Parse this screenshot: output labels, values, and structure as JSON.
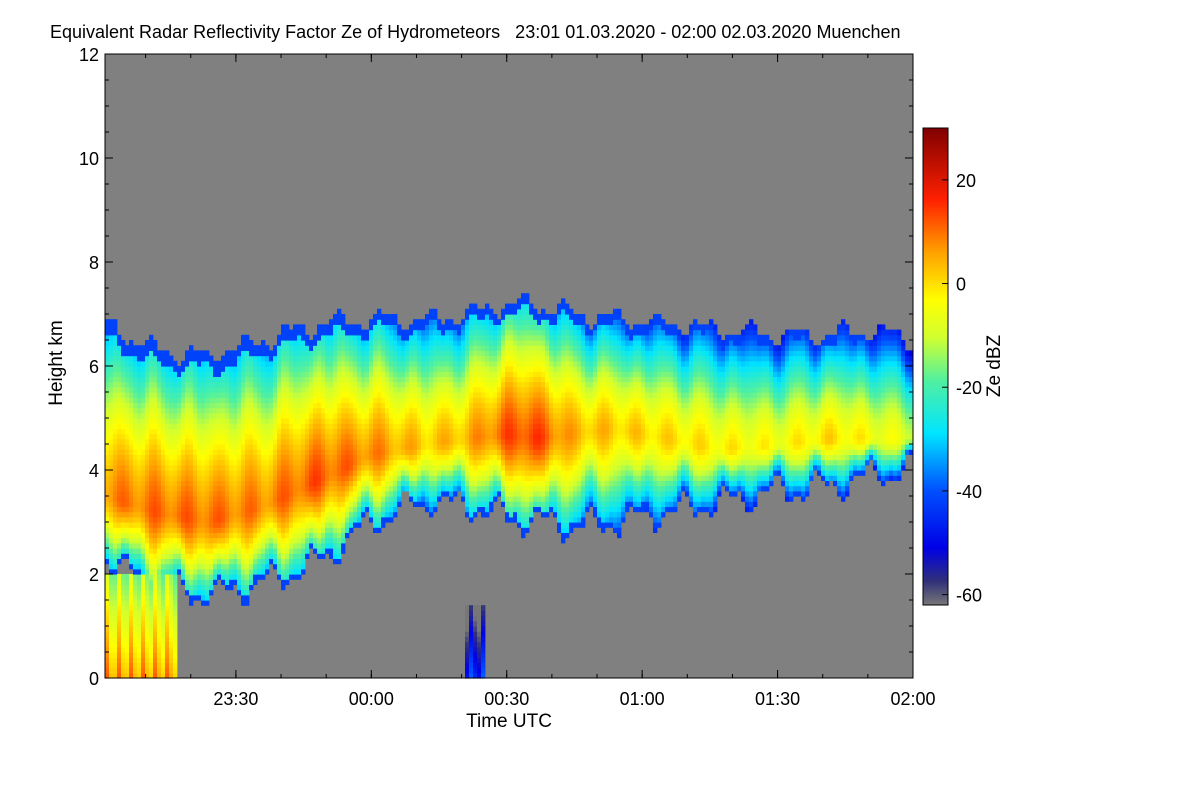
{
  "chart_data": {
    "type": "heatmap",
    "title": "Equivalent Radar Reflectivity Factor Ze of Hydrometeors   23:01 01.03.2020 - 02:00 02.03.2020 Muenchen",
    "xlabel": "Time UTC",
    "ylabel": "Height km",
    "colorbar_label": "Ze dBZ",
    "x_range_hours": [
      -0.9833,
      2.0
    ],
    "x_ticks": [
      {
        "value": -0.5,
        "label": "23:30"
      },
      {
        "value": 0.0,
        "label": "00:00"
      },
      {
        "value": 0.5,
        "label": "00:30"
      },
      {
        "value": 1.0,
        "label": "01:00"
      },
      {
        "value": 1.5,
        "label": "01:30"
      },
      {
        "value": 2.0,
        "label": "02:00"
      }
    ],
    "ylim": [
      0,
      12
    ],
    "y_ticks": [
      {
        "value": 0,
        "label": "0"
      },
      {
        "value": 2,
        "label": "2"
      },
      {
        "value": 4,
        "label": "4"
      },
      {
        "value": 6,
        "label": "6"
      },
      {
        "value": 8,
        "label": "8"
      },
      {
        "value": 10,
        "label": "10"
      },
      {
        "value": 12,
        "label": "12"
      }
    ],
    "color_range_dbz": [
      -62,
      30
    ],
    "colorbar_ticks": [
      {
        "value": 20,
        "label": "20"
      },
      {
        "value": 0,
        "label": "0"
      },
      {
        "value": -20,
        "label": "-20"
      },
      {
        "value": -40,
        "label": "-40"
      },
      {
        "value": -60,
        "label": "-60"
      }
    ],
    "background_color": "#808080",
    "cloud_layer": {
      "x": [
        -0.98,
        -0.8,
        -0.6,
        -0.4,
        -0.2,
        0.0,
        0.2,
        0.35,
        0.5,
        0.6,
        0.75,
        0.9,
        1.1,
        1.3,
        1.5,
        1.7,
        1.85,
        2.0
      ],
      "top_km": [
        6.8,
        6.3,
        6.2,
        6.5,
        6.8,
        6.9,
        6.9,
        7.0,
        7.2,
        7.2,
        7.0,
        6.9,
        6.8,
        6.7,
        6.6,
        6.6,
        6.7,
        6.5
      ],
      "base_km": [
        2.3,
        1.7,
        1.6,
        1.8,
        2.2,
        3.0,
        3.4,
        3.3,
        3.1,
        3.0,
        2.9,
        3.0,
        3.2,
        3.4,
        3.6,
        3.7,
        3.9,
        4.0
      ],
      "peak_height_km": [
        3.5,
        3.2,
        3.0,
        3.3,
        3.8,
        4.3,
        4.5,
        4.6,
        4.7,
        4.6,
        4.7,
        4.8,
        4.6,
        4.4,
        4.5,
        4.6,
        4.6,
        4.6
      ],
      "peak_dbz": [
        8,
        10,
        10,
        8,
        12,
        8,
        2,
        4,
        12,
        14,
        4,
        2,
        0,
        -2,
        -4,
        0,
        -4,
        -8
      ]
    },
    "precipitation_shafts": [
      {
        "x_start": -0.98,
        "x_end": -0.72,
        "top_km": 2.0,
        "dbz": 6
      },
      {
        "x_start": 0.35,
        "x_end": 0.42,
        "top_km": 1.4,
        "dbz": -44
      }
    ]
  }
}
